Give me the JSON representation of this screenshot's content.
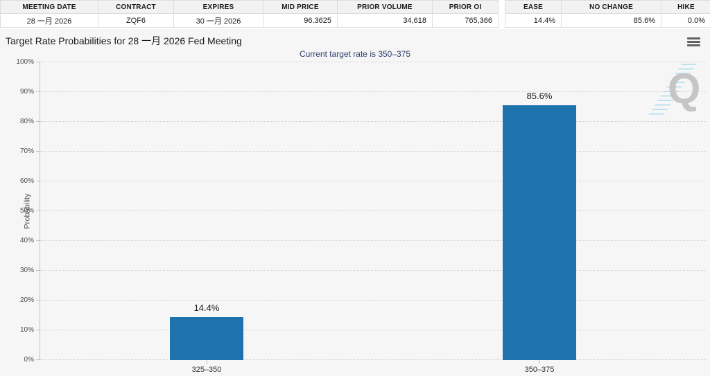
{
  "contract_table": {
    "headers": [
      "MEETING DATE",
      "CONTRACT",
      "EXPIRES",
      "MID PRICE",
      "PRIOR VOLUME",
      "PRIOR OI"
    ],
    "row": {
      "meeting_date": "28 一月 2026",
      "contract": "ZQF6",
      "expires": "30 一月 2026",
      "mid_price": "96.3625",
      "prior_volume": "34,618",
      "prior_oi": "765,366"
    }
  },
  "probability_table": {
    "headers": [
      "EASE",
      "NO CHANGE",
      "HIKE"
    ],
    "row": {
      "ease": "14.4%",
      "no_change": "85.6%",
      "hike": "0.0%"
    }
  },
  "chart": {
    "title": "Target Rate Probabilities for 28 一月 2026 Fed Meeting",
    "subtitle": "Current target rate is 350–375",
    "menu_icon": "hamburger-menu-icon",
    "watermark_letter": "Q"
  },
  "chart_data": {
    "type": "bar",
    "title": "Target Rate Probabilities for 28 一月 2026 Fed Meeting",
    "subtitle": "Current target rate is 350–375",
    "categories": [
      "325–350",
      "350–375"
    ],
    "values": [
      14.4,
      85.6
    ],
    "data_labels": [
      "14.4%",
      "85.6%"
    ],
    "xlabel": "",
    "ylabel": "Probability",
    "ylim": [
      0,
      100
    ],
    "ytick_step": 10,
    "ytick_labels": [
      "0%",
      "10%",
      "20%",
      "30%",
      "40%",
      "50%",
      "60%",
      "70%",
      "80%",
      "90%",
      "100%"
    ],
    "grid": "dotted horizontal",
    "legend": "none",
    "bar_color": "#1e73ae",
    "background_color": "#f6f6f6"
  }
}
